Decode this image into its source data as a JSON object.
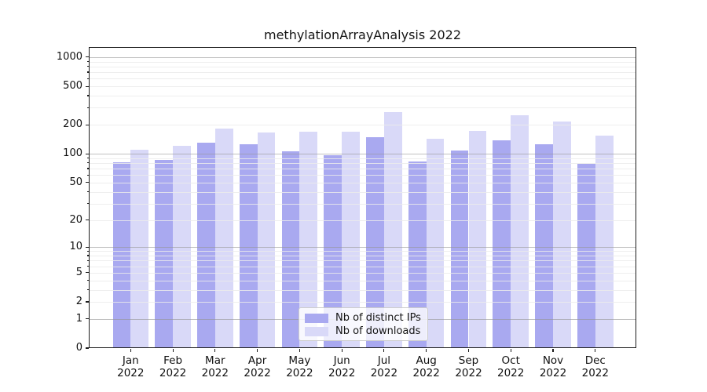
{
  "title": "methylationArrayAnalysis 2022",
  "chart_data": {
    "type": "bar",
    "title": "methylationArrayAnalysis 2022",
    "categories": [
      "Jan",
      "Feb",
      "Mar",
      "Apr",
      "May",
      "Jun",
      "Jul",
      "Aug",
      "Sep",
      "Oct",
      "Nov",
      "Dec"
    ],
    "x_tick_year": "2022",
    "series": [
      {
        "name": "Nb of distinct IPs",
        "color": "#a9a9f0",
        "values": [
          82,
          87,
          131,
          125,
          106,
          96,
          148,
          83,
          108,
          137,
          125,
          78
        ]
      },
      {
        "name": "Nb of downloads",
        "color": "#d9d9f8",
        "values": [
          110,
          122,
          183,
          166,
          168,
          171,
          269,
          144,
          174,
          252,
          216,
          153
        ]
      }
    ],
    "xlabel": "",
    "ylabel": "",
    "yscale": "log1p",
    "ylim": [
      0,
      1271
    ],
    "y_ticks": [
      0,
      1,
      2,
      5,
      10,
      20,
      50,
      100,
      200,
      500,
      1000
    ],
    "y_major_gridlines": [
      1,
      10,
      100,
      1000
    ],
    "y_minor_gridlines": [
      2,
      3,
      4,
      5,
      6,
      7,
      8,
      9,
      20,
      30,
      40,
      50,
      60,
      70,
      80,
      90,
      200,
      300,
      400,
      500,
      600,
      700,
      800,
      900
    ],
    "grid": true,
    "grid_major_color": "#969696",
    "grid_minor_color": "#ebebeb",
    "legend_position": "inside-bottom-center",
    "legend_entries": [
      "Nb of distinct IPs",
      "Nb of downloads"
    ]
  }
}
